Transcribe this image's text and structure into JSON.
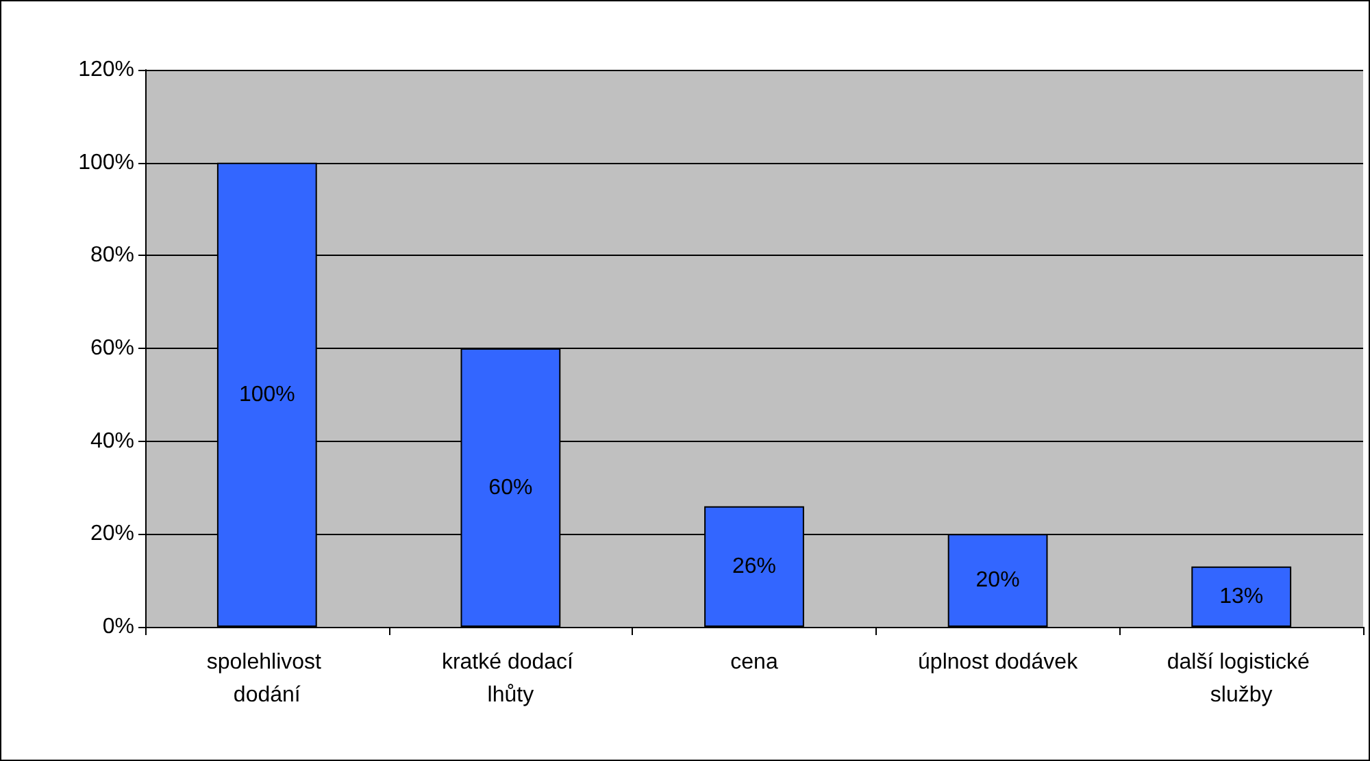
{
  "chart_data": {
    "type": "bar",
    "categories": [
      "spolehlivost dodání",
      "kratké dodací lhůty",
      "cena",
      "úplnost dodávek",
      "další logistické služby"
    ],
    "values": [
      100,
      60,
      26,
      20,
      13
    ],
    "value_labels": [
      "100%",
      "60%",
      "26%",
      "20%",
      "13%"
    ],
    "color": "#3366ff",
    "ylim": [
      0,
      120
    ],
    "yticks": [
      {
        "value": 0,
        "label": "0%"
      },
      {
        "value": 20,
        "label": "20%"
      },
      {
        "value": 40,
        "label": "40%"
      },
      {
        "value": 60,
        "label": "60%"
      },
      {
        "value": 80,
        "label": "80%"
      },
      {
        "value": 100,
        "label": "100%"
      },
      {
        "value": 120,
        "label": "120%"
      }
    ],
    "grid": "y"
  }
}
